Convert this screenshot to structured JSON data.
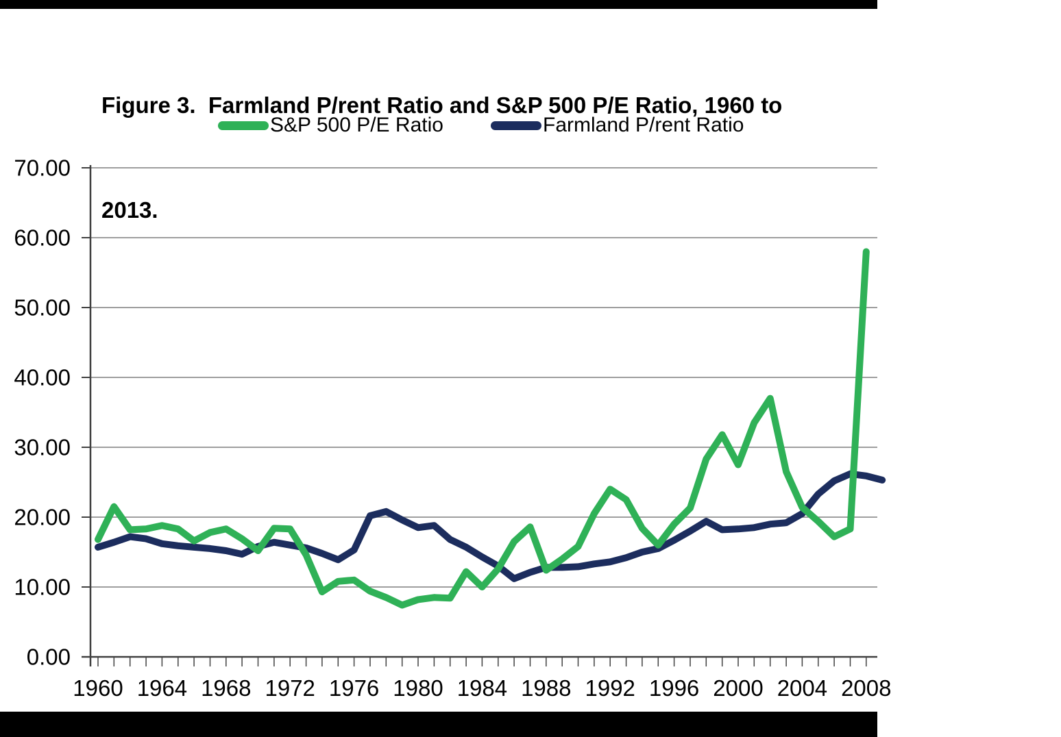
{
  "title": {
    "full": "Figure 3. Farmland P/rent Ratio and S&P 500 P/E Ratio, 1960 to 2013.",
    "line1": "Figure 3.  Farmland P/rent Ratio and S&P 500 P/E Ratio, 1960 to",
    "line2": "2013."
  },
  "legend": [
    {
      "label": "S&P 500 P/E Ratio",
      "color": "#2fb157"
    },
    {
      "label": "Farmland P/rent Ratio",
      "color": "#1c2d5e"
    }
  ],
  "chart_data": {
    "type": "line",
    "title": "Figure 3. Farmland P/rent Ratio and S&P 500 P/E Ratio, 1960 to 2013.",
    "xlabel": "",
    "ylabel": "",
    "grid": true,
    "legend_position": "top",
    "ylim": [
      0,
      70
    ],
    "ytick_step": 10,
    "ytick_labels": [
      "0.00",
      "10.00",
      "20.00",
      "30.00",
      "40.00",
      "50.00",
      "60.00",
      "70.00"
    ],
    "xtick_labels": [
      "1960",
      "1964",
      "1968",
      "1972",
      "1976",
      "1980",
      "1984",
      "1988",
      "1992",
      "1996",
      "2000",
      "2004",
      "2008"
    ],
    "x": [
      1960,
      1961,
      1962,
      1963,
      1964,
      1965,
      1966,
      1967,
      1968,
      1969,
      1970,
      1971,
      1972,
      1973,
      1974,
      1975,
      1976,
      1977,
      1978,
      1979,
      1980,
      1981,
      1982,
      1983,
      1984,
      1985,
      1986,
      1987,
      1988,
      1989,
      1990,
      1991,
      1992,
      1993,
      1994,
      1995,
      1996,
      1997,
      1998,
      1999,
      2000,
      2001,
      2002,
      2003,
      2004,
      2005,
      2006,
      2007,
      2008,
      2009
    ],
    "series": [
      {
        "id": "sp500-pe",
        "name": "S&P 500 P/E Ratio",
        "color": "#2fb157",
        "values": [
          16.8,
          21.5,
          18.2,
          18.3,
          18.8,
          18.3,
          16.6,
          17.8,
          18.3,
          16.9,
          15.2,
          18.4,
          18.3,
          14.6,
          9.3,
          10.8,
          11.0,
          9.4,
          8.5,
          7.4,
          8.2,
          8.5,
          8.4,
          12.2,
          10.0,
          12.6,
          16.5,
          18.6,
          12.4,
          14.0,
          15.8,
          20.5,
          24.0,
          22.5,
          18.4,
          16.0,
          19.0,
          21.3,
          28.3,
          31.8,
          27.5,
          33.5,
          37.0,
          26.5,
          21.4,
          19.4,
          17.2,
          18.3,
          58.0,
          null
        ]
      },
      {
        "id": "farmland-prent",
        "name": "Farmland P/rent Ratio",
        "color": "#1c2d5e",
        "values": [
          15.7,
          16.4,
          17.2,
          16.9,
          16.2,
          15.9,
          15.7,
          15.5,
          15.2,
          14.7,
          15.8,
          16.4,
          16.0,
          15.6,
          14.8,
          13.9,
          15.3,
          20.2,
          20.8,
          19.6,
          18.5,
          18.8,
          16.8,
          15.7,
          14.3,
          13.0,
          11.2,
          12.1,
          12.8,
          12.8,
          12.9,
          13.3,
          13.6,
          14.2,
          15.0,
          15.5,
          16.7,
          18.0,
          19.4,
          18.2,
          18.3,
          18.5,
          19.0,
          19.2,
          20.5,
          23.3,
          25.2,
          26.2,
          25.9,
          25.3
        ]
      }
    ],
    "colors": {
      "grid": "#7f7f7f",
      "axis": "#404040",
      "text": "#000000"
    }
  }
}
